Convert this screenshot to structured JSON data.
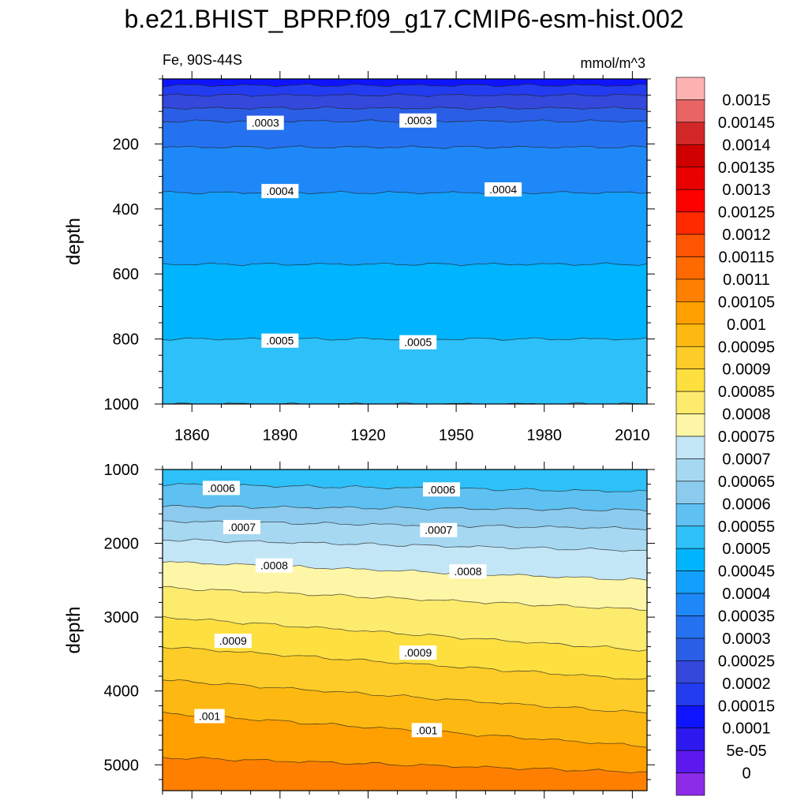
{
  "title": "b.e21.BHIST_BPRP.f09_g17.CMIP6-esm-hist.002",
  "subtitle_left": "Fe, 90S-44S",
  "subtitle_right": "mmol/m^3",
  "chart_data": [
    {
      "type": "heatmap",
      "panel": "upper",
      "xlabel": "",
      "ylabel": "depth",
      "x_range": [
        1850,
        2015
      ],
      "y_range": [
        0,
        1000
      ],
      "y_inverted": true,
      "x_ticks": [
        1860,
        1890,
        1920,
        1950,
        1980,
        2010
      ],
      "y_ticks": [
        200,
        400,
        600,
        800,
        1000
      ],
      "contours": [
        {
          "level": 0.00015,
          "depth": 20
        },
        {
          "level": 0.0002,
          "depth": 50
        },
        {
          "level": 0.00025,
          "depth": 90
        },
        {
          "level": 0.0003,
          "depth": 130
        },
        {
          "level": 0.00035,
          "depth": 210
        },
        {
          "level": 0.0004,
          "depth": 350
        },
        {
          "level": 0.00045,
          "depth": 570
        },
        {
          "level": 0.0005,
          "depth": 800
        },
        {
          "level": 0.00055,
          "depth": 1000
        }
      ],
      "contour_labels": [
        {
          "text": ".0003",
          "x": 1885,
          "y": 135
        },
        {
          "text": ".0003",
          "x": 1937,
          "y": 128
        },
        {
          "text": ".0004",
          "x": 1890,
          "y": 345
        },
        {
          "text": ".0004",
          "x": 1966,
          "y": 340
        },
        {
          "text": ".0005",
          "x": 1890,
          "y": 805
        },
        {
          "text": ".0005",
          "x": 1937,
          "y": 810
        }
      ]
    },
    {
      "type": "heatmap",
      "panel": "lower",
      "xlabel": "",
      "ylabel": "depth",
      "x_range": [
        1850,
        2015
      ],
      "y_range": [
        1000,
        5350
      ],
      "y_inverted": true,
      "x_ticks": [
        1860,
        1890,
        1920,
        1950,
        1980,
        2010
      ],
      "y_ticks": [
        1000,
        2000,
        3000,
        4000,
        5000
      ],
      "contours": [
        {
          "level": 0.00055,
          "depth_start": 1200,
          "depth_end": 1300
        },
        {
          "level": 0.0006,
          "depth_start": 1500,
          "depth_end": 1550
        },
        {
          "level": 0.00065,
          "depth_start": 1700,
          "depth_end": 1800
        },
        {
          "level": 0.0007,
          "depth_start": 1950,
          "depth_end": 2100
        },
        {
          "level": 0.00075,
          "depth_start": 2250,
          "depth_end": 2500
        },
        {
          "level": 0.0008,
          "depth_start": 2600,
          "depth_end": 2900
        },
        {
          "level": 0.00085,
          "depth_start": 3000,
          "depth_end": 3450
        },
        {
          "level": 0.0009,
          "depth_start": 3400,
          "depth_end": 3850
        },
        {
          "level": 0.00095,
          "depth_start": 3850,
          "depth_end": 4300
        },
        {
          "level": 0.001,
          "depth_start": 4300,
          "depth_end": 4750
        },
        {
          "level": 0.00105,
          "depth_start": 4900,
          "depth_end": 5100
        }
      ],
      "contour_labels": [
        {
          "text": ".0006",
          "x": 1870,
          "y": 1250
        },
        {
          "text": ".0006",
          "x": 1945,
          "y": 1270
        },
        {
          "text": ".0007",
          "x": 1877,
          "y": 1780
        },
        {
          "text": ".0007",
          "x": 1944,
          "y": 1820
        },
        {
          "text": ".0008",
          "x": 1888,
          "y": 2300
        },
        {
          "text": ".0008",
          "x": 1954,
          "y": 2380
        },
        {
          "text": ".0009",
          "x": 1874,
          "y": 3320
        },
        {
          "text": ".0009",
          "x": 1937,
          "y": 3480
        },
        {
          "text": ".001",
          "x": 1866,
          "y": 4340
        },
        {
          "text": ".001",
          "x": 1940,
          "y": 4530
        }
      ]
    }
  ],
  "colorbar": {
    "labels": [
      "0.0015",
      "0.00145",
      "0.0014",
      "0.00135",
      "0.0013",
      "0.00125",
      "0.0012",
      "0.00115",
      "0.0011",
      "0.00105",
      "0.001",
      "0.00095",
      "0.0009",
      "0.00085",
      "0.0008",
      "0.00075",
      "0.0007",
      "0.00065",
      "0.0006",
      "0.00055",
      "0.0005",
      "0.00045",
      "0.0004",
      "0.00035",
      "0.0003",
      "0.00025",
      "0.0002",
      "0.00015",
      "0.0001",
      "5e-05",
      "0"
    ],
    "colors": [
      "#fdb2b2",
      "#e96464",
      "#d22828",
      "#d00000",
      "#e90000",
      "#ff0000",
      "#ff2a00",
      "#ff5500",
      "#ff6a00",
      "#ff8000",
      "#ffa000",
      "#fdb812",
      "#fdcc28",
      "#fde040",
      "#fdeb6e",
      "#fdf6a6",
      "#c3e6f7",
      "#a7d8f2",
      "#8ccbee",
      "#5ec1f2",
      "#2ec0f8",
      "#00b4fd",
      "#13a0fd",
      "#1e88f8",
      "#2572f0",
      "#2b5ee6",
      "#3448db",
      "#233cf0",
      "#0f14ff",
      "#2d19f0",
      "#5b19f0",
      "#8c2be8"
    ]
  }
}
